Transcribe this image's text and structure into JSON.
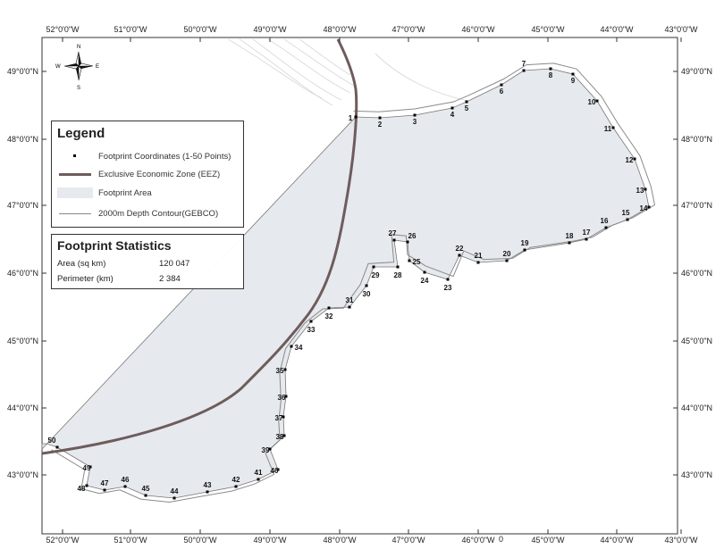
{
  "map": {
    "top_lon_labels": [
      "52°0'0\"W",
      "51°0'0\"W",
      "50°0'0\"W",
      "49°0'0\"W",
      "48°0'0\"W",
      "47°0'0\"W",
      "46°0'0\"W",
      "45°0'0\"W",
      "44°0'0\"W",
      "43°0'0\"W"
    ],
    "bottom_lon_labels": [
      "52°0'0\"W",
      "51°0'0\"W",
      "50°0'0\"W",
      "49°0'0\"W",
      "48°0'0\"W",
      "47°0'0\"W",
      "46°0'0\"W",
      "45°0'0\"W",
      "44°0'0\"W",
      "43°0'0\"W"
    ],
    "left_lat_labels": [
      "49°0'0\"N",
      "48°0'0\"N",
      "47°0'0\"N",
      "46°0'0\"N",
      "45°0'0\"N",
      "44°0'0\"N",
      "43°0'0\"N"
    ],
    "right_lat_labels": [
      "49°0'0\"N",
      "48°0'0\"N",
      "47°0'0\"N",
      "46°0'0\"N",
      "45°0'0\"N",
      "44°0'0\"N",
      "43°0'0\"N"
    ],
    "bottom_center_mark": "0",
    "colors": {
      "footprint_area": "#e6e9ed",
      "eez": "#6e5c5c",
      "contour": "#8a8a8a",
      "point": "#000000"
    }
  },
  "compass": {
    "n": "N",
    "s": "S",
    "e": "E",
    "w": "W"
  },
  "legend": {
    "title": "Legend",
    "items": [
      {
        "label": "Footprint Coordinates (1-50 Points)",
        "symbol": "point-icon"
      },
      {
        "label": "Exclusive Economic Zone (EEZ)",
        "symbol": "eez-line-icon"
      },
      {
        "label": "Footprint Area",
        "symbol": "area-swatch-icon"
      },
      {
        "label": "2000m Depth Contour(GEBCO)",
        "symbol": "contour-line-icon"
      }
    ]
  },
  "stats": {
    "title": "Footprint Statistics",
    "rows": [
      {
        "label": "Area (sq km)",
        "value": "120 047"
      },
      {
        "label": "Perimeter (km)",
        "value": "2 384"
      }
    ]
  },
  "points": [
    {
      "n": "1"
    },
    {
      "n": "2"
    },
    {
      "n": "3"
    },
    {
      "n": "4"
    },
    {
      "n": "5"
    },
    {
      "n": "6"
    },
    {
      "n": "7"
    },
    {
      "n": "8"
    },
    {
      "n": "9"
    },
    {
      "n": "10"
    },
    {
      "n": "11"
    },
    {
      "n": "12"
    },
    {
      "n": "13"
    },
    {
      "n": "14"
    },
    {
      "n": "15"
    },
    {
      "n": "16"
    },
    {
      "n": "17"
    },
    {
      "n": "18"
    },
    {
      "n": "19"
    },
    {
      "n": "20"
    },
    {
      "n": "21"
    },
    {
      "n": "22"
    },
    {
      "n": "23"
    },
    {
      "n": "24"
    },
    {
      "n": "25"
    },
    {
      "n": "26"
    },
    {
      "n": "27"
    },
    {
      "n": "28"
    },
    {
      "n": "29"
    },
    {
      "n": "30"
    },
    {
      "n": "31"
    },
    {
      "n": "32"
    },
    {
      "n": "33"
    },
    {
      "n": "34"
    },
    {
      "n": "35"
    },
    {
      "n": "36"
    },
    {
      "n": "37"
    },
    {
      "n": "38"
    },
    {
      "n": "39"
    },
    {
      "n": "40"
    },
    {
      "n": "41"
    },
    {
      "n": "42"
    },
    {
      "n": "43"
    },
    {
      "n": "44"
    },
    {
      "n": "45"
    },
    {
      "n": "46"
    },
    {
      "n": "47"
    },
    {
      "n": "48"
    },
    {
      "n": "49"
    },
    {
      "n": "50"
    }
  ]
}
